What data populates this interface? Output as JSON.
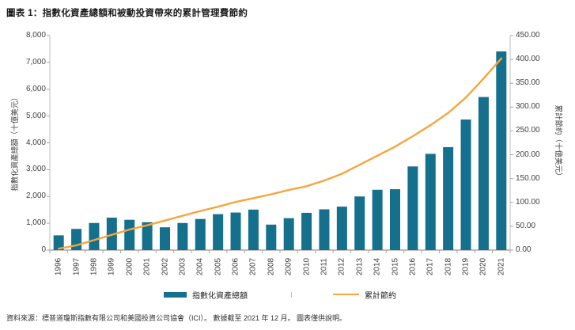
{
  "title": "圖表 1：指數化資產總額和被動投資帶來的累計管理費節約",
  "footer": "資料來源：標普道瓊斯指數有限公司和美國投資公司協會（ICI）。 數據截至 2021 年 12 月。 圖表僅供說明。",
  "colors": {
    "bar": "#14708C",
    "line": "#F7A53C",
    "side_axis": "#BFBFBF",
    "bottom_axis": "#7F7F7F",
    "tick": "#A6A6A6",
    "text": "#3F3F3F"
  },
  "legend": {
    "bars_label": "指數化資產總額",
    "line_label": "累計節約"
  },
  "chart_data": {
    "type": "bar",
    "subtype": "bar+line combo, dual axis",
    "title": "圖表 1：指數化資產總額和被動投資帶來的累計管理費節約",
    "categories": [
      "1996",
      "1997",
      "1998",
      "1999",
      "2000",
      "2001",
      "2002",
      "2003",
      "2004",
      "2005",
      "2006",
      "2007",
      "2008",
      "2009",
      "2010",
      "2011",
      "2012",
      "2013",
      "2014",
      "2015",
      "2016",
      "2017",
      "2018",
      "2019",
      "2020",
      "2021"
    ],
    "series": [
      {
        "name": "指數化資產總額",
        "type": "bar",
        "axis": "left",
        "values": [
          550,
          790,
          1010,
          1210,
          1130,
          1040,
          850,
          1010,
          1160,
          1340,
          1400,
          1510,
          950,
          1190,
          1390,
          1520,
          1620,
          2000,
          2250,
          2270,
          3120,
          3590,
          3840,
          4870,
          5710,
          7410
        ]
      },
      {
        "name": "累計節約",
        "type": "line",
        "axis": "right",
        "values": [
          3,
          10,
          21,
          32,
          43,
          52,
          62,
          72,
          82,
          91,
          101,
          109,
          117,
          126,
          134,
          146,
          160,
          179,
          198,
          217,
          239,
          262,
          288,
          320,
          360,
          402
        ]
      }
    ],
    "left_axis": {
      "label": "指數化資產總額（十億美元）",
      "min": 0,
      "max": 8000,
      "step": 1000,
      "tick_labels": [
        "0",
        "1,000",
        "2,000",
        "3,000",
        "4,000",
        "5,000",
        "6,000",
        "7,000",
        "8,000"
      ]
    },
    "right_axis": {
      "label": "累計節約（十億美元）",
      "min": 0,
      "max": 450,
      "step": 50,
      "tick_labels": [
        "0.00",
        "50.00",
        "100.00",
        "150.00",
        "200.00",
        "250.00",
        "300.00",
        "350.00",
        "400.00",
        "450.00"
      ]
    },
    "x_axis": {
      "tick_position": "category-boundaries",
      "label_rotation": -90
    },
    "grid": false,
    "legend_position": "bottom-center"
  }
}
